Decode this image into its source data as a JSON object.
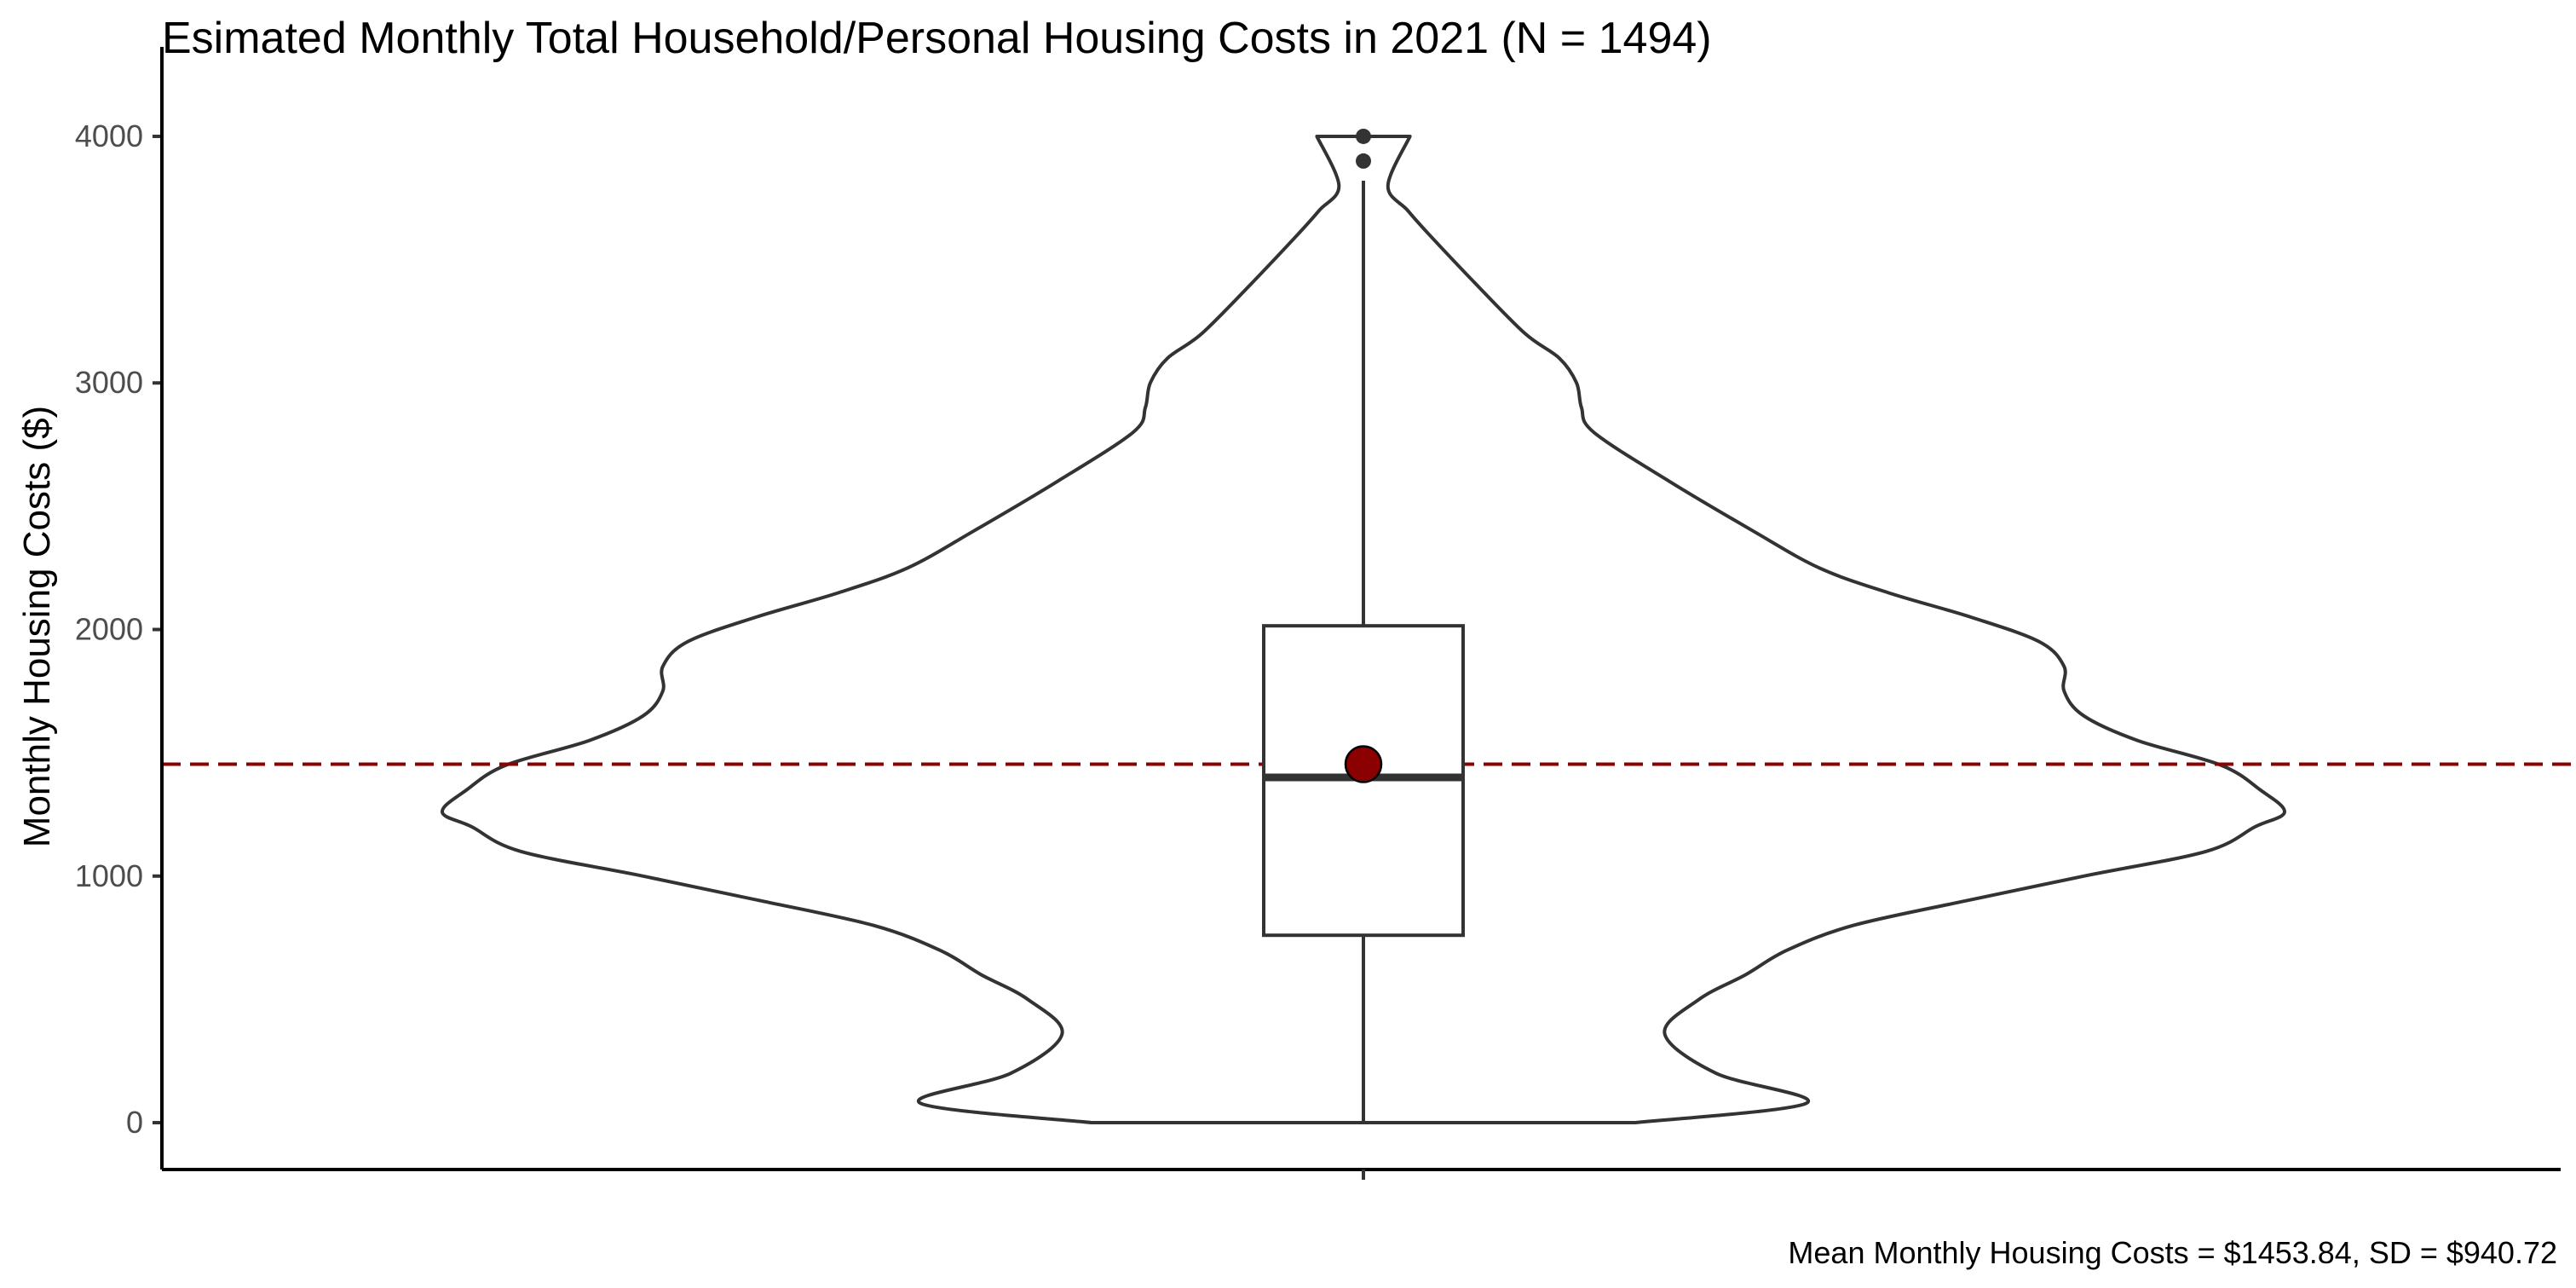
{
  "chart_data": {
    "type": "violin",
    "title": "Esimated Monthly Total Household/Personal Housing Costs in 2021 (N = 1494)",
    "xlabel": "",
    "ylabel": "Monthly Housing Costs ($)",
    "caption": "Mean Monthly Housing Costs = $1453.84, SD = $940.72",
    "ylim": [
      -190,
      4190
    ],
    "yticks": [
      0,
      1000,
      2000,
      3000,
      4000
    ],
    "yticklabels": [
      "0",
      "1000",
      "2000",
      "3000",
      "4000"
    ],
    "grid": false,
    "legend": "none",
    "colors": {
      "outline": "#333333",
      "mean_point": "#8b0000",
      "mean_line": "#8b0000",
      "tick_label": "#4d4d4d",
      "axis": "#000000"
    },
    "violin": {
      "density": [
        [
          0,
          0.555
        ],
        [
          80,
          0.905
        ],
        [
          200,
          0.72
        ],
        [
          360,
          0.615
        ],
        [
          500,
          0.685
        ],
        [
          600,
          0.78
        ],
        [
          700,
          0.865
        ],
        [
          800,
          1.0
        ],
        [
          900,
          1.23
        ],
        [
          1000,
          1.47
        ],
        [
          1100,
          1.72
        ],
        [
          1200,
          1.82
        ],
        [
          1260,
          1.88
        ],
        [
          1350,
          1.83
        ],
        [
          1450,
          1.75
        ],
        [
          1550,
          1.58
        ],
        [
          1650,
          1.47
        ],
        [
          1750,
          1.43
        ],
        [
          1850,
          1.43
        ],
        [
          1950,
          1.38
        ],
        [
          2050,
          1.24
        ],
        [
          2150,
          1.07
        ],
        [
          2250,
          0.93
        ],
        [
          2400,
          0.795
        ],
        [
          2600,
          0.625
        ],
        [
          2800,
          0.47
        ],
        [
          2900,
          0.445
        ],
        [
          3000,
          0.435
        ],
        [
          3100,
          0.4
        ],
        [
          3200,
          0.33
        ],
        [
          3400,
          0.23
        ],
        [
          3600,
          0.135
        ],
        [
          3700,
          0.09
        ],
        [
          3800,
          0.05
        ],
        [
          4000,
          0.095
        ]
      ]
    },
    "boxplot": {
      "whisker_low": 0,
      "q1": 760,
      "median": 1400,
      "q3": 2015,
      "whisker_high": 3820,
      "outliers": [
        3900,
        4000
      ]
    },
    "mean": 1453.84,
    "sd": 940.72
  }
}
